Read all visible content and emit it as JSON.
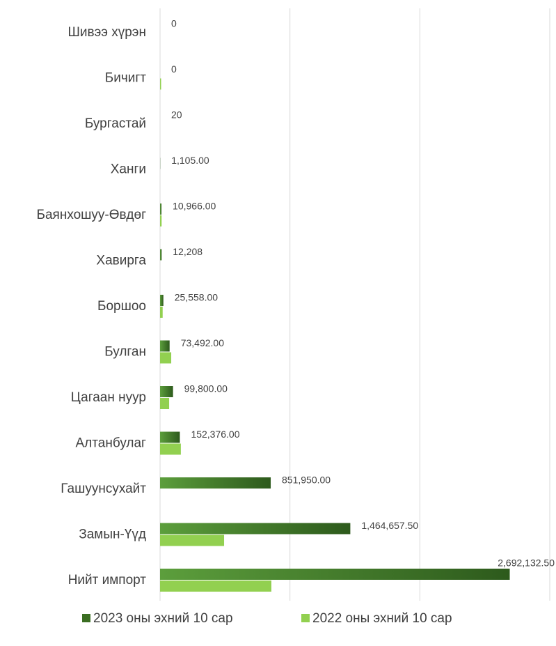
{
  "chart_data": {
    "type": "bar",
    "orientation": "horizontal",
    "categories": [
      "Шивээ хүрэн",
      "Бичигт",
      "Бургастай",
      "Ханги",
      "Баянхошуу-Өвдөг",
      "Хавирга",
      "Боршоо",
      "Булган",
      "Цагаан нуур",
      "Алтанбулаг",
      "Гашуунсухайт",
      "Замын-Үүд",
      "Нийт импорт"
    ],
    "series": [
      {
        "name": "2023 оны эхний 10 сар",
        "color": "#3b6e22",
        "values": [
          0,
          0,
          20,
          1105,
          10966,
          12208,
          25558,
          73492,
          99800,
          152376,
          851950,
          1464657.5,
          2692132.5
        ],
        "value_labels": [
          "0",
          "0",
          "20",
          "1,105.00",
          "10,966.00",
          "12,208",
          "25,558.00",
          "73,492.00",
          "99,800.00",
          "152,376.00",
          "851,950.00",
          "1,464,657.50",
          "2,692,132.50"
        ]
      },
      {
        "name": "2022 оны эхний 10 сар",
        "color": "#92d050",
        "values": [
          0,
          8000,
          0,
          0,
          12000,
          0,
          20000,
          86000,
          70000,
          160000,
          0,
          493000,
          857000
        ]
      }
    ],
    "xlim": [
      0,
      3000000
    ],
    "xticks": [
      0,
      1000000,
      2000000,
      3000000
    ],
    "grid": true,
    "legend": "bottom"
  }
}
